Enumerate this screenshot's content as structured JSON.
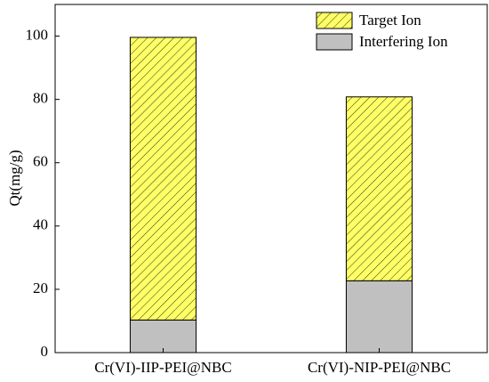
{
  "chart_data": {
    "type": "stacked_bar",
    "y_label": "Qt(mg/g)",
    "categories": [
      "Cr(VI)-IIP-PEI@NBC",
      "Cr(VI)-NIP-PEI@NBC"
    ],
    "series": [
      {
        "name": "Target Ion",
        "color": "#ffff66",
        "hatch": true,
        "values": [
          89.3,
          58.1
        ]
      },
      {
        "name": "Interfering Ion",
        "color": "#c0c0c0",
        "hatch": false,
        "values": [
          10.3,
          22.7
        ]
      }
    ],
    "stack_order": [
      1,
      0
    ],
    "ylim": [
      0,
      110
    ],
    "yticks": [
      0,
      20,
      40,
      60,
      80,
      100
    ],
    "legend": "upper right"
  }
}
